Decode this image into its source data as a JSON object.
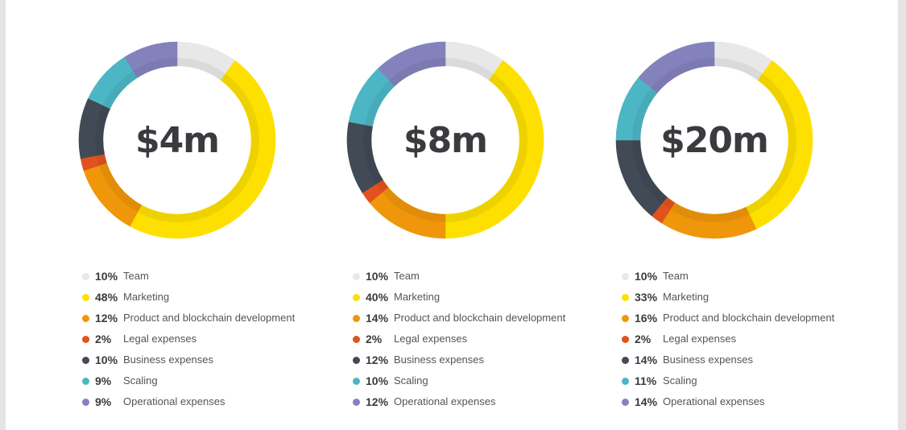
{
  "chart_data": [
    {
      "type": "pie",
      "center_label": "$4m",
      "categories": [
        "Team",
        "Marketing",
        "Product and blockchain development",
        "Legal expenses",
        "Business expenses",
        "Scaling",
        "Operational expenses"
      ],
      "values": [
        10,
        48,
        12,
        2,
        10,
        9,
        9
      ],
      "value_labels": [
        "10%",
        "48%",
        "12%",
        "2%",
        "10%",
        "9%",
        "9%"
      ],
      "colors": [
        "#e8e8e8",
        "#fde000",
        "#f0960a",
        "#e2521e",
        "#414a55",
        "#4db6c5",
        "#8482bc"
      ]
    },
    {
      "type": "pie",
      "center_label": "$8m",
      "categories": [
        "Team",
        "Marketing",
        "Product and blockchain development",
        "Legal expenses",
        "Business expenses",
        "Scaling",
        "Operational expenses"
      ],
      "values": [
        10,
        40,
        14,
        2,
        12,
        10,
        12
      ],
      "value_labels": [
        "10%",
        "40%",
        "14%",
        "2%",
        "12%",
        "10%",
        "12%"
      ],
      "colors": [
        "#e8e8e8",
        "#fde000",
        "#f0960a",
        "#e2521e",
        "#414a55",
        "#4db6c5",
        "#8482bc"
      ]
    },
    {
      "type": "pie",
      "center_label": "$20m",
      "categories": [
        "Team",
        "Marketing",
        "Product and blockchain development",
        "Legal expenses",
        "Business expenses",
        "Scaling",
        "Operational expenses"
      ],
      "values": [
        10,
        33,
        16,
        2,
        14,
        11,
        14
      ],
      "value_labels": [
        "10%",
        "33%",
        "16%",
        "2%",
        "14%",
        "11%",
        "14%"
      ],
      "colors": [
        "#e8e8e8",
        "#fde000",
        "#f0960a",
        "#e2521e",
        "#414a55",
        "#4db6c5",
        "#8482bc"
      ]
    }
  ]
}
